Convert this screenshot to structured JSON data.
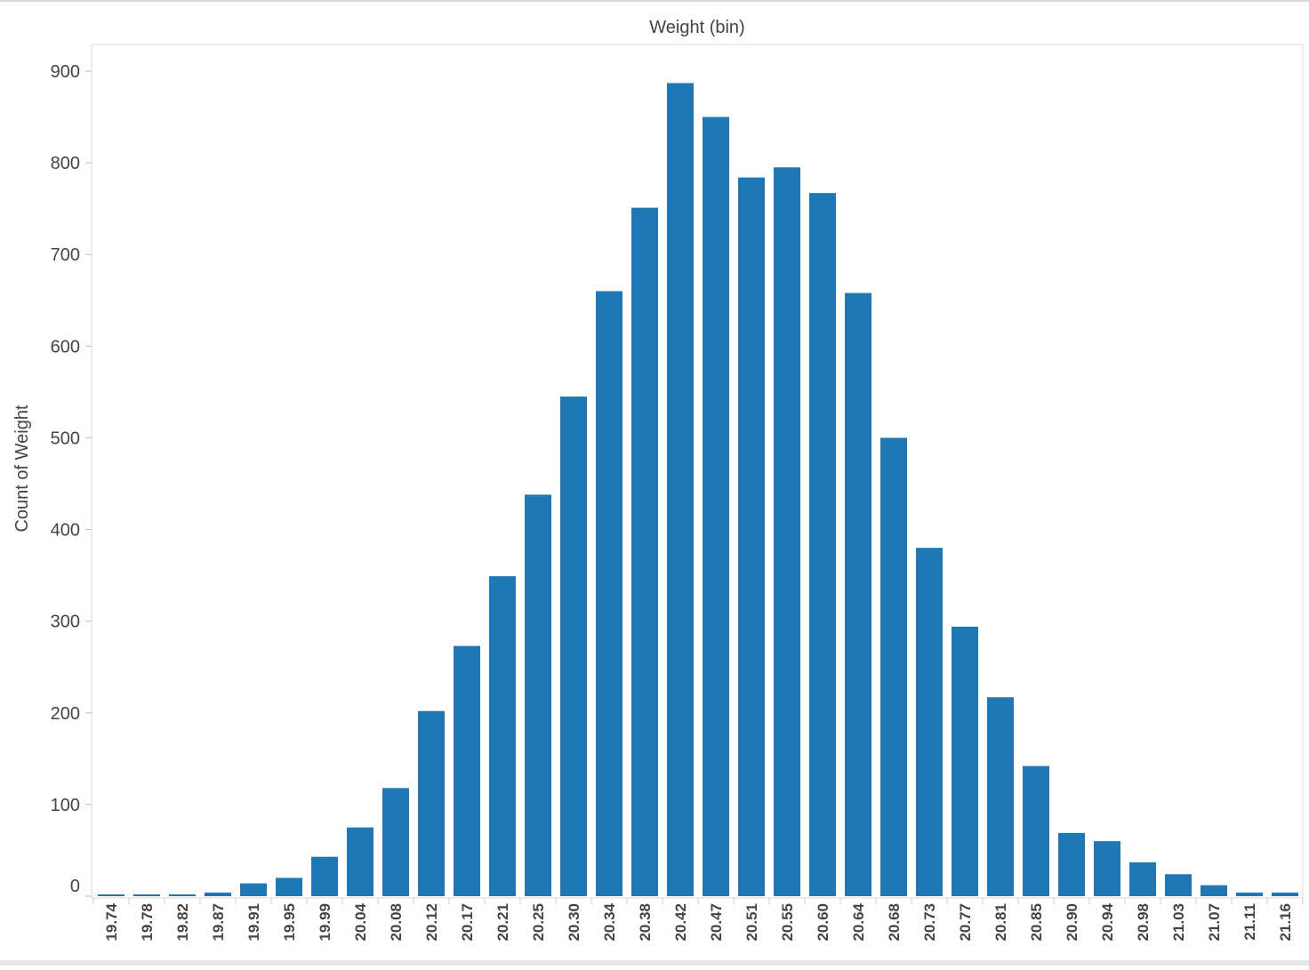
{
  "chart_data": {
    "type": "bar",
    "title": "Weight (bin)",
    "xlabel": "",
    "ylabel": "Count of Weight",
    "ylim": [
      0,
      900
    ],
    "yticks": [
      0,
      100,
      200,
      300,
      400,
      500,
      600,
      700,
      800,
      900
    ],
    "grid": false,
    "categories": [
      "19.74",
      "19.78",
      "19.82",
      "19.87",
      "19.91",
      "19.95",
      "19.99",
      "20.04",
      "20.08",
      "20.12",
      "20.17",
      "20.21",
      "20.25",
      "20.30",
      "20.34",
      "20.38",
      "20.42",
      "20.47",
      "20.51",
      "20.55",
      "20.60",
      "20.64",
      "20.68",
      "20.73",
      "20.77",
      "20.81",
      "20.85",
      "20.90",
      "20.94",
      "20.98",
      "21.03",
      "21.07",
      "21.11",
      "21.16"
    ],
    "values": [
      2,
      2,
      2,
      4,
      14,
      20,
      43,
      75,
      118,
      202,
      273,
      349,
      438,
      545,
      660,
      751,
      887,
      850,
      784,
      795,
      767,
      658,
      500,
      380,
      294,
      217,
      142,
      69,
      60,
      37,
      24,
      12,
      4,
      4
    ],
    "colors": {
      "bar": "#1F77B4",
      "frame": "#D9D9D9",
      "text": "#444444"
    }
  }
}
